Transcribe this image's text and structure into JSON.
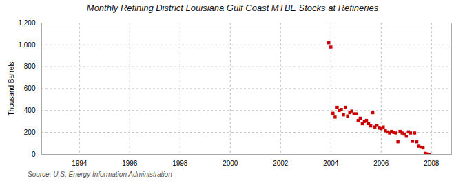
{
  "chart_data": {
    "type": "scatter",
    "title": "Monthly Refining District Louisiana Gulf Coast MTBE Stocks at Refineries",
    "ylabel": "Thousand Barrels",
    "source": "Source: U.S. Energy Information Administration",
    "color": "#cc0000",
    "marker": "square",
    "grid": true,
    "xlim": [
      1992.5,
      2008.8
    ],
    "xticks": [
      1994,
      1996,
      1998,
      2000,
      2002,
      2004,
      2006,
      2008
    ],
    "ylim": [
      0,
      1200
    ],
    "yticks": [
      0,
      200,
      400,
      600,
      800,
      {
        "value": 1000,
        "label": "1,000"
      },
      {
        "value": 1200,
        "label": "1,200"
      }
    ],
    "x": [
      2003.917,
      2004.0,
      2004.083,
      2004.167,
      2004.25,
      2004.333,
      2004.417,
      2004.5,
      2004.583,
      2004.667,
      2004.75,
      2004.833,
      2004.917,
      2005.0,
      2005.083,
      2005.167,
      2005.25,
      2005.333,
      2005.417,
      2005.5,
      2005.583,
      2005.667,
      2005.75,
      2005.833,
      2005.917,
      2006.0,
      2006.083,
      2006.167,
      2006.25,
      2006.333,
      2006.417,
      2006.5,
      2006.583,
      2006.667,
      2006.75,
      2006.833,
      2006.917,
      2007.0,
      2007.083,
      2007.167,
      2007.25,
      2007.333,
      2007.417,
      2007.5,
      2007.583,
      2007.667,
      2007.75,
      2007.833,
      2007.917
    ],
    "values": [
      1020,
      980,
      375,
      340,
      430,
      400,
      410,
      360,
      430,
      350,
      380,
      395,
      370,
      370,
      310,
      330,
      280,
      300,
      310,
      280,
      260,
      380,
      250,
      265,
      240,
      235,
      250,
      215,
      205,
      195,
      210,
      200,
      195,
      115,
      210,
      195,
      185,
      165,
      205,
      195,
      120,
      195,
      115,
      75,
      65,
      60,
      10,
      5,
      2
    ]
  }
}
